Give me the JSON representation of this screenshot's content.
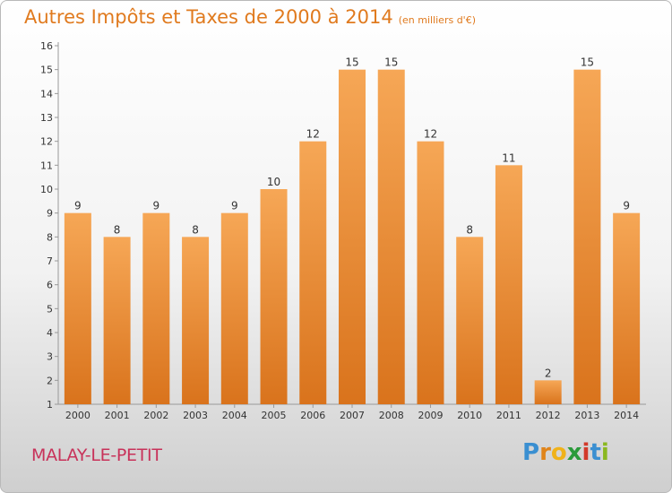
{
  "header": {
    "title": "Autres Impôts et Taxes de 2000 à 2014",
    "unit": "(en milliers d'€)"
  },
  "footer": {
    "commune": "MALAY-LE-PETIT",
    "logo": [
      "P",
      "r",
      "o",
      "x",
      "i",
      "t",
      "i"
    ]
  },
  "colors": {
    "title": "#e07a1e",
    "commune": "#c8325a",
    "bar_light": "#f6a756",
    "bar_dark": "#d9731c",
    "logo": [
      "#3a8fd1",
      "#e0841a",
      "#f0b21a",
      "#2a9a3a",
      "#d23a2a",
      "#3a8fd1",
      "#8ab820"
    ]
  },
  "chart_data": {
    "type": "bar",
    "categories": [
      "2000",
      "2001",
      "2002",
      "2003",
      "2004",
      "2005",
      "2006",
      "2007",
      "2008",
      "2009",
      "2010",
      "2011",
      "2012",
      "2013",
      "2014"
    ],
    "values": [
      9,
      8,
      9,
      8,
      9,
      10,
      12,
      15,
      15,
      12,
      8,
      11,
      2,
      15,
      9
    ],
    "title": "Autres Impôts et Taxes de 2000 à 2014",
    "xlabel": "",
    "ylabel": "",
    "ylim": [
      1,
      16
    ],
    "yticks": [
      1,
      2,
      3,
      4,
      5,
      6,
      7,
      8,
      9,
      10,
      11,
      12,
      13,
      14,
      15,
      16
    ],
    "grid": false,
    "legend": "none"
  }
}
